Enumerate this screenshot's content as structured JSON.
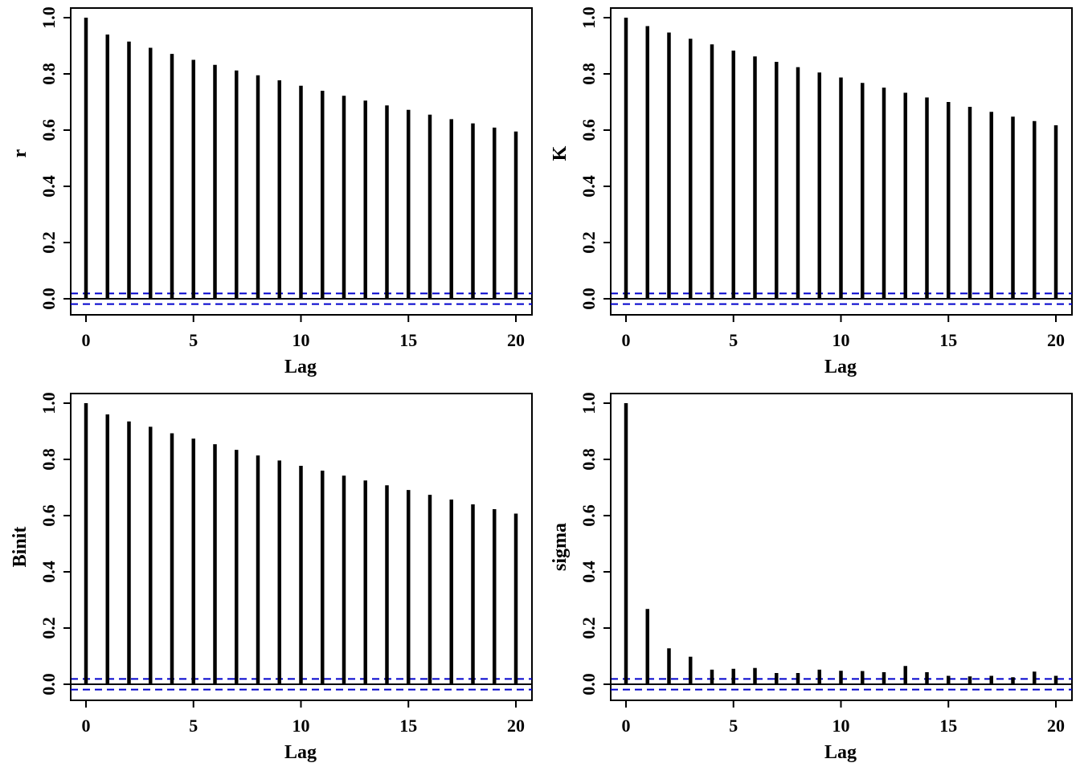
{
  "chart_data": [
    {
      "type": "bar",
      "xlabel": "Lag",
      "ylabel": "r",
      "x": [
        0,
        1,
        2,
        3,
        4,
        5,
        6,
        7,
        8,
        9,
        10,
        11,
        12,
        13,
        14,
        15,
        16,
        17,
        18,
        19,
        20
      ],
      "values": [
        1.0,
        0.94,
        0.915,
        0.893,
        0.871,
        0.85,
        0.832,
        0.812,
        0.795,
        0.777,
        0.758,
        0.74,
        0.722,
        0.705,
        0.688,
        0.672,
        0.655,
        0.639,
        0.624,
        0.609,
        0.595
      ],
      "xlim": [
        0,
        20
      ],
      "ylim": [
        0.0,
        1.0
      ],
      "xticks": [
        "0",
        "5",
        "10",
        "15",
        "20"
      ],
      "yticks": [
        "0.0",
        "0.2",
        "0.4",
        "0.6",
        "0.8",
        "1.0"
      ],
      "confidence_band": [
        -0.019,
        0.019
      ],
      "colors": {
        "bars": "#000000",
        "band": "#0000cc",
        "zero_line": "#000000"
      }
    },
    {
      "type": "bar",
      "xlabel": "Lag",
      "ylabel": "K",
      "x": [
        0,
        1,
        2,
        3,
        4,
        5,
        6,
        7,
        8,
        9,
        10,
        11,
        12,
        13,
        14,
        15,
        16,
        17,
        18,
        19,
        20
      ],
      "values": [
        1.0,
        0.97,
        0.947,
        0.925,
        0.905,
        0.883,
        0.862,
        0.843,
        0.824,
        0.805,
        0.787,
        0.768,
        0.751,
        0.733,
        0.716,
        0.7,
        0.683,
        0.665,
        0.648,
        0.632,
        0.617
      ],
      "xlim": [
        0,
        20
      ],
      "ylim": [
        0.0,
        1.0
      ],
      "xticks": [
        "0",
        "5",
        "10",
        "15",
        "20"
      ],
      "yticks": [
        "0.0",
        "0.2",
        "0.4",
        "0.6",
        "0.8",
        "1.0"
      ],
      "confidence_band": [
        -0.019,
        0.019
      ],
      "colors": {
        "bars": "#000000",
        "band": "#0000cc",
        "zero_line": "#000000"
      }
    },
    {
      "type": "bar",
      "xlabel": "Lag",
      "ylabel": "Binit",
      "x": [
        0,
        1,
        2,
        3,
        4,
        5,
        6,
        7,
        8,
        9,
        10,
        11,
        12,
        13,
        14,
        15,
        16,
        17,
        18,
        19,
        20
      ],
      "values": [
        1.0,
        0.96,
        0.935,
        0.916,
        0.893,
        0.874,
        0.854,
        0.834,
        0.814,
        0.796,
        0.777,
        0.76,
        0.742,
        0.725,
        0.708,
        0.691,
        0.674,
        0.657,
        0.64,
        0.623,
        0.607
      ],
      "xlim": [
        0,
        20
      ],
      "ylim": [
        0.0,
        1.0
      ],
      "xticks": [
        "0",
        "5",
        "10",
        "15",
        "20"
      ],
      "yticks": [
        "0.0",
        "0.2",
        "0.4",
        "0.6",
        "0.8",
        "1.0"
      ],
      "confidence_band": [
        -0.019,
        0.019
      ],
      "colors": {
        "bars": "#000000",
        "band": "#0000cc",
        "zero_line": "#000000"
      }
    },
    {
      "type": "bar",
      "xlabel": "Lag",
      "ylabel": "sigma",
      "x": [
        0,
        1,
        2,
        3,
        4,
        5,
        6,
        7,
        8,
        9,
        10,
        11,
        12,
        13,
        14,
        15,
        16,
        17,
        18,
        19,
        20
      ],
      "values": [
        1.0,
        0.268,
        0.128,
        0.098,
        0.052,
        0.055,
        0.058,
        0.04,
        0.04,
        0.052,
        0.048,
        0.047,
        0.043,
        0.065,
        0.043,
        0.03,
        0.028,
        0.03,
        0.025,
        0.045,
        0.03
      ],
      "xlim": [
        0,
        20
      ],
      "ylim": [
        0.0,
        1.0
      ],
      "xticks": [
        "0",
        "5",
        "10",
        "15",
        "20"
      ],
      "yticks": [
        "0.0",
        "0.2",
        "0.4",
        "0.6",
        "0.8",
        "1.0"
      ],
      "confidence_band": [
        -0.019,
        0.019
      ],
      "colors": {
        "bars": "#000000",
        "band": "#0000cc",
        "zero_line": "#000000"
      }
    }
  ]
}
